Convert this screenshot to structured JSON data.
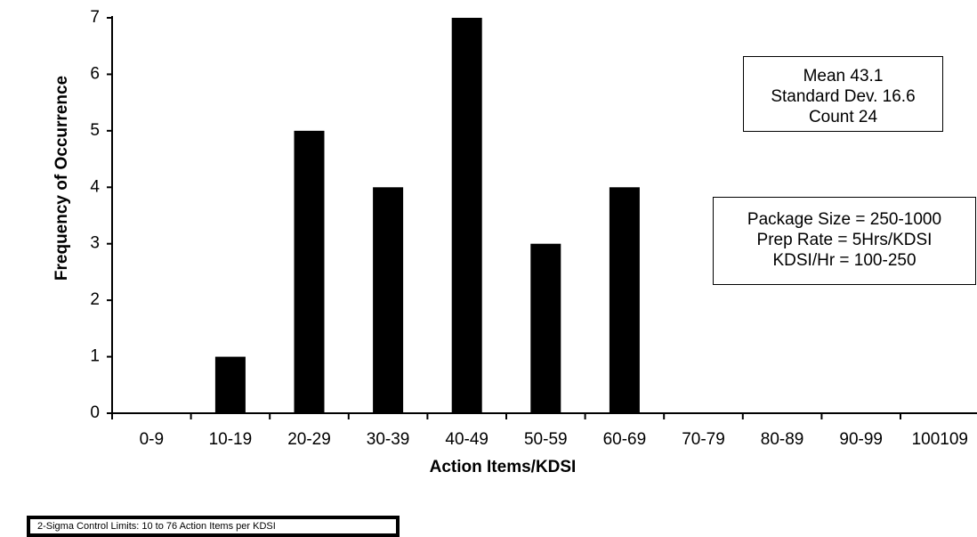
{
  "chart_data": {
    "type": "bar",
    "categories": [
      "0-9",
      "10-19",
      "20-29",
      "30-39",
      "40-49",
      "50-59",
      "60-69",
      "70-79",
      "80-89",
      "90-99",
      "100109"
    ],
    "values": [
      0,
      1,
      5,
      4,
      7,
      3,
      4,
      0,
      0,
      0,
      0
    ],
    "xlabel": "Action Items/KDSI",
    "ylabel": "Frequency of Occurrence",
    "ylim": [
      0,
      7
    ],
    "yticks": [
      0,
      1,
      2,
      3,
      4,
      5,
      6,
      7
    ],
    "bar_color": "#000000",
    "grid": false,
    "annotations": {
      "stats": [
        "Mean   43.1",
        "Standard Dev. 16.6",
        "Count 24"
      ],
      "package": [
        "Package Size = 250-1000",
        "Prep Rate = 5Hrs/KDSI",
        "KDSI/Hr = 100-250"
      ],
      "limits": "2-Sigma Control Limits: 10 to 76 Action Items per KDSI"
    }
  }
}
